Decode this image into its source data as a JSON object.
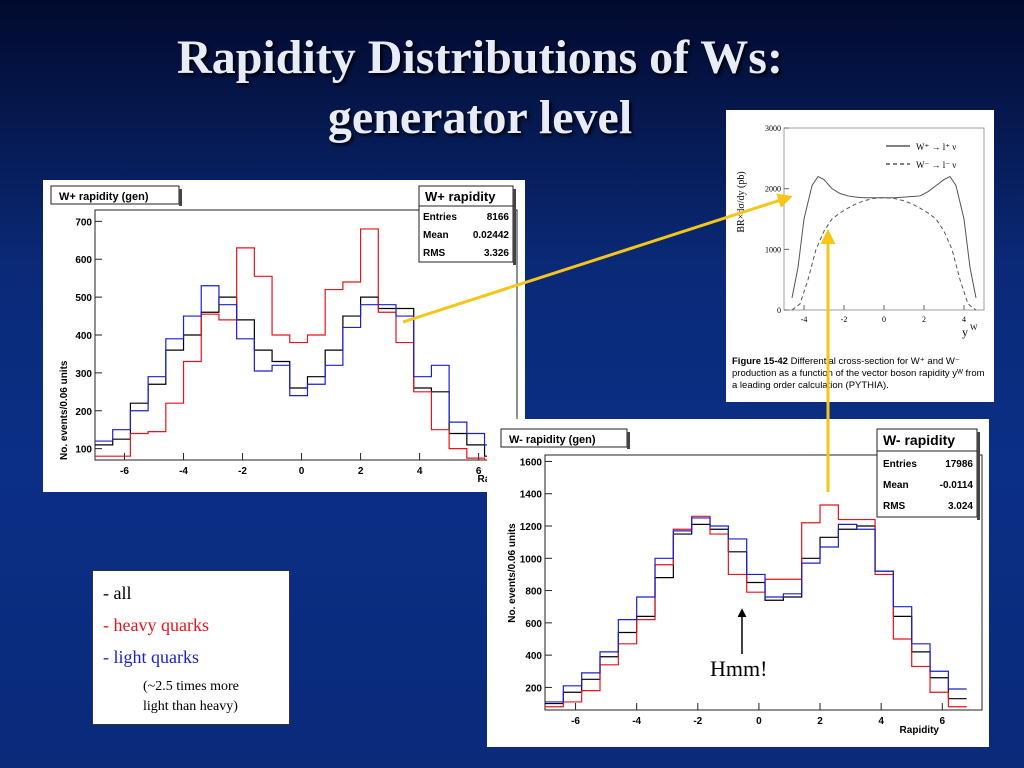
{
  "slide": {
    "title_line1": "Rapidity Distributions of Ws:",
    "title_line2": "generator level"
  },
  "colors": {
    "all": "#000000",
    "heavy": "#e8141c",
    "light": "#1a20d0",
    "arrow": "#f5c518"
  },
  "legend": {
    "all": "- all",
    "heavy": "- heavy quarks",
    "light": "- light quarks",
    "note1": "(~2.5 times more",
    "note2": "light than heavy)"
  },
  "annotation": {
    "hmm": "Hmm!"
  },
  "chart_data": [
    {
      "type": "histogram",
      "title": "W+ rapidity (gen)",
      "xlabel": "Rapidity",
      "ylabel": "No. events/0.06 units",
      "xlim": [
        -7,
        7.3
      ],
      "ylim": [
        70,
        730
      ],
      "xticks": [
        -6,
        -4,
        -2,
        0,
        2,
        4,
        6
      ],
      "yticks": [
        100,
        200,
        300,
        400,
        500,
        600,
        700
      ],
      "bin_edges": [
        -7,
        -6.4,
        -5.8,
        -5.2,
        -4.6,
        -4,
        -3.4,
        -2.8,
        -2.2,
        -1.6,
        -1,
        -0.4,
        0.2,
        0.8,
        1.4,
        2,
        2.6,
        3.2,
        3.8,
        4.4,
        5,
        5.6,
        6.2,
        6.8
      ],
      "series": [
        {
          "key": "all",
          "values": [
            110,
            125,
            220,
            270,
            360,
            400,
            460,
            500,
            440,
            360,
            330,
            260,
            290,
            360,
            450,
            500,
            470,
            470,
            260,
            250,
            140,
            110,
            80
          ]
        },
        {
          "key": "heavy",
          "values": [
            80,
            80,
            140,
            145,
            220,
            330,
            455,
            440,
            630,
            555,
            400,
            380,
            400,
            520,
            540,
            680,
            460,
            380,
            250,
            150,
            100,
            75,
            70
          ]
        },
        {
          "key": "light",
          "values": [
            120,
            150,
            200,
            290,
            390,
            450,
            530,
            480,
            390,
            305,
            320,
            240,
            270,
            320,
            420,
            480,
            480,
            450,
            290,
            320,
            170,
            140,
            110
          ]
        }
      ],
      "stats": {
        "title": "W+ rapidity",
        "entries_label": "Entries",
        "entries": "8166",
        "mean_label": "Mean",
        "mean": "0.02442",
        "rms_label": "RMS",
        "rms": "3.326"
      }
    },
    {
      "type": "histogram",
      "title": "W- rapidity (gen)",
      "xlabel": "Rapidity",
      "ylabel": "No. events/0.06 units",
      "xlim": [
        -7,
        7.3
      ],
      "ylim": [
        60,
        1640
      ],
      "xticks": [
        -6,
        -4,
        -2,
        0,
        2,
        4,
        6
      ],
      "yticks": [
        200,
        400,
        600,
        800,
        1000,
        1200,
        1400,
        1600
      ],
      "bin_edges": [
        -7,
        -6.4,
        -5.8,
        -5.2,
        -4.6,
        -4,
        -3.4,
        -2.8,
        -2.2,
        -1.6,
        -1,
        -0.4,
        0.2,
        0.8,
        1.4,
        2,
        2.6,
        3.2,
        3.8,
        4.4,
        5,
        5.6,
        6.2,
        6.8
      ],
      "series": [
        {
          "key": "all",
          "values": [
            100,
            170,
            250,
            390,
            540,
            640,
            880,
            1150,
            1210,
            1180,
            1040,
            850,
            740,
            760,
            1000,
            1130,
            1180,
            1200,
            920,
            640,
            420,
            260,
            130
          ]
        },
        {
          "key": "heavy",
          "values": [
            80,
            110,
            180,
            340,
            470,
            620,
            960,
            1180,
            1260,
            1150,
            900,
            790,
            870,
            870,
            1220,
            1330,
            1240,
            1240,
            900,
            500,
            330,
            170,
            80
          ]
        },
        {
          "key": "light",
          "values": [
            110,
            210,
            290,
            420,
            620,
            760,
            1000,
            1170,
            1250,
            1200,
            1120,
            900,
            760,
            780,
            970,
            1070,
            1210,
            1180,
            920,
            700,
            470,
            300,
            190
          ]
        }
      ],
      "stats": {
        "title": "W- rapidity",
        "entries_label": "Entries",
        "entries": "17986",
        "mean_label": "Mean",
        "mean": "-0.0114",
        "rms_label": "RMS",
        "rms": "3.024"
      }
    },
    {
      "type": "line",
      "ylabel": "BR×dσ/dy (pb)",
      "xlabel": "y",
      "xlabel_sup": "W",
      "xlim": [
        -5,
        5
      ],
      "ylim": [
        0,
        3000
      ],
      "xticks": [
        -4,
        -2,
        0,
        2,
        4
      ],
      "yticks": [
        0,
        1000,
        2000,
        3000
      ],
      "series": [
        {
          "key": "wplus",
          "label": "W⁺ → l⁺ ν",
          "style": "solid",
          "x": [
            -4.6,
            -4.3,
            -4.0,
            -3.6,
            -3.3,
            -3.0,
            -2.6,
            -2.2,
            -1.8,
            -1.4,
            -1.0,
            -0.5,
            0,
            0.5,
            1.0,
            1.4,
            1.8,
            2.2,
            2.6,
            3.0,
            3.3,
            3.6,
            4.0,
            4.3,
            4.6
          ],
          "y": [
            200,
            700,
            1500,
            2050,
            2200,
            2150,
            2000,
            1920,
            1880,
            1860,
            1850,
            1850,
            1850,
            1850,
            1860,
            1870,
            1880,
            1950,
            2050,
            2150,
            2200,
            2050,
            1500,
            700,
            200
          ]
        },
        {
          "key": "wminus",
          "label": "W⁻ → l⁻ ν",
          "style": "dashed",
          "x": [
            -4.6,
            -4.2,
            -3.8,
            -3.4,
            -3.0,
            -2.6,
            -2.2,
            -1.8,
            -1.4,
            -1.0,
            -0.5,
            0,
            0.5,
            1.0,
            1.4,
            1.8,
            2.2,
            2.6,
            3.0,
            3.4,
            3.8,
            4.2,
            4.6
          ],
          "y": [
            0,
            100,
            500,
            1000,
            1300,
            1500,
            1600,
            1680,
            1750,
            1800,
            1840,
            1850,
            1840,
            1800,
            1750,
            1680,
            1600,
            1500,
            1300,
            1000,
            500,
            100,
            0
          ]
        }
      ],
      "caption_bold": "Figure 15-42",
      "caption_text": "Differential cross-section for W⁺ and W⁻ production as a function of the vector boson rapidity yᵂ from a leading order calculation (PYTHIA)."
    }
  ]
}
